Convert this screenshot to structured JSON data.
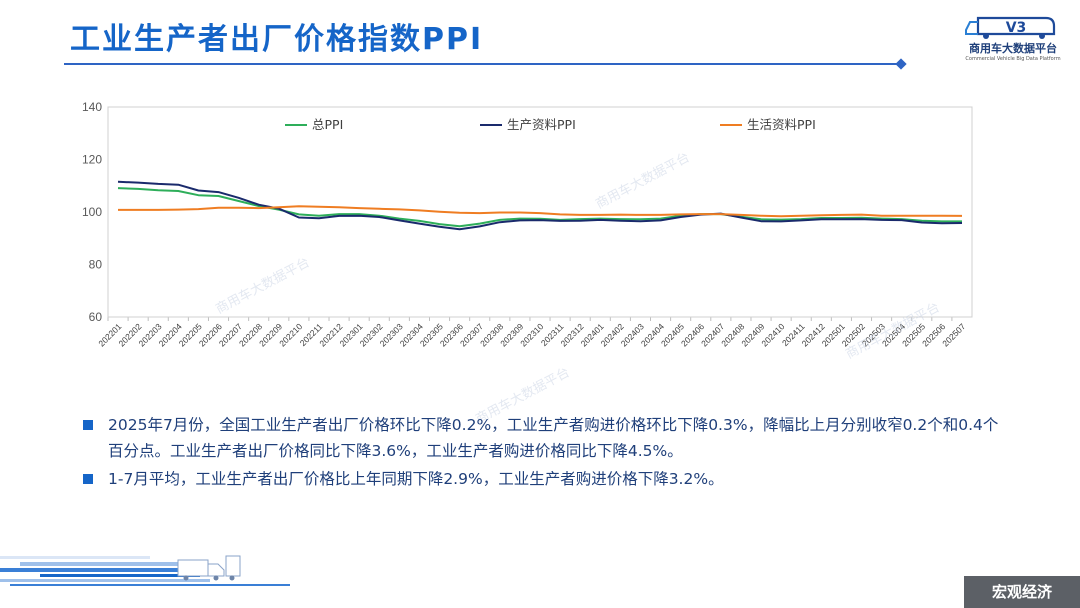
{
  "header": {
    "title": "工业生产者出厂价格指数PPI"
  },
  "logo": {
    "mark": "V3",
    "name": "商用车大数据平台",
    "subtitle": "Commercial Vehicle Big Data Platform"
  },
  "watermark": "商用车大数据平台",
  "footer": {
    "section_label": "宏观经济"
  },
  "bullets": [
    "2025年7月份，全国工业生产者出厂价格环比下降0.2%，工业生产者购进价格环比下降0.3%，降幅比上月分别收窄0.2个和0.4个百分点。工业生产者出厂价格同比下降3.6%，工业生产者购进价格同比下降4.5%。",
    "1-7月平均，工业生产者出厂价格比上年同期下降2.9%，工业生产者购进价格下降3.2%。"
  ],
  "colors": {
    "title": "#1565c8",
    "series_total": "#2eae5a",
    "series_production": "#1a2a6c",
    "series_living": "#ef7d22",
    "axis": "#bfbfbf"
  },
  "chart_data": {
    "type": "line",
    "ylim": [
      60,
      140
    ],
    "yticks": [
      60,
      80,
      100,
      120,
      140
    ],
    "legend_position": "top",
    "grid": false,
    "categories": [
      "202201",
      "202202",
      "202203",
      "202204",
      "202205",
      "202206",
      "202207",
      "202208",
      "202209",
      "202210",
      "202211",
      "202212",
      "202301",
      "202302",
      "202303",
      "202304",
      "202305",
      "202306",
      "202307",
      "202308",
      "202309",
      "202310",
      "202311",
      "202312",
      "202401",
      "202402",
      "202403",
      "202404",
      "202405",
      "202406",
      "202407",
      "202408",
      "202409",
      "202410",
      "202411",
      "202412",
      "202501",
      "202502",
      "202503",
      "202504",
      "202505",
      "202506",
      "202507"
    ],
    "series": [
      {
        "name": "总PPI",
        "color": "#2eae5a",
        "values": [
          109.1,
          108.8,
          108.3,
          108.0,
          106.4,
          106.1,
          104.2,
          102.3,
          100.9,
          99.1,
          98.6,
          99.2,
          99.2,
          98.6,
          97.5,
          96.6,
          95.4,
          94.6,
          95.6,
          97.0,
          97.5,
          97.4,
          97.0,
          97.3,
          97.5,
          97.3,
          97.2,
          97.5,
          98.6,
          99.2,
          99.2,
          98.2,
          97.2,
          97.1,
          97.3,
          97.7,
          97.7,
          97.8,
          97.5,
          97.3,
          96.7,
          96.4,
          96.4
        ],
        "color_key": "series_total"
      },
      {
        "name": "生产资料PPI",
        "color": "#1a2a6c",
        "values": [
          111.5,
          111.2,
          110.7,
          110.4,
          108.2,
          107.6,
          105.4,
          102.8,
          101.3,
          97.9,
          97.6,
          98.5,
          98.6,
          98.1,
          96.8,
          95.6,
          94.4,
          93.4,
          94.5,
          96.1,
          96.8,
          96.9,
          96.6,
          96.7,
          97.0,
          96.7,
          96.5,
          96.8,
          98.1,
          99.0,
          99.4,
          97.9,
          96.5,
          96.4,
          96.8,
          97.2,
          97.2,
          97.3,
          97.0,
          96.9,
          96.0,
          95.7,
          95.8
        ],
        "color_key": "series_production"
      },
      {
        "name": "生活资料PPI",
        "color": "#ef7d22",
        "values": [
          100.8,
          100.8,
          100.8,
          100.9,
          101.1,
          101.6,
          101.6,
          101.5,
          101.8,
          102.2,
          102.0,
          101.8,
          101.5,
          101.2,
          101.0,
          100.6,
          100.1,
          99.7,
          99.6,
          99.8,
          99.8,
          99.6,
          99.1,
          98.9,
          98.9,
          99.0,
          98.9,
          98.9,
          99.1,
          99.2,
          99.2,
          98.9,
          98.6,
          98.4,
          98.6,
          98.8,
          98.9,
          99.0,
          98.6,
          98.6,
          98.6,
          98.6,
          98.5
        ],
        "color_key": "series_living"
      }
    ]
  }
}
